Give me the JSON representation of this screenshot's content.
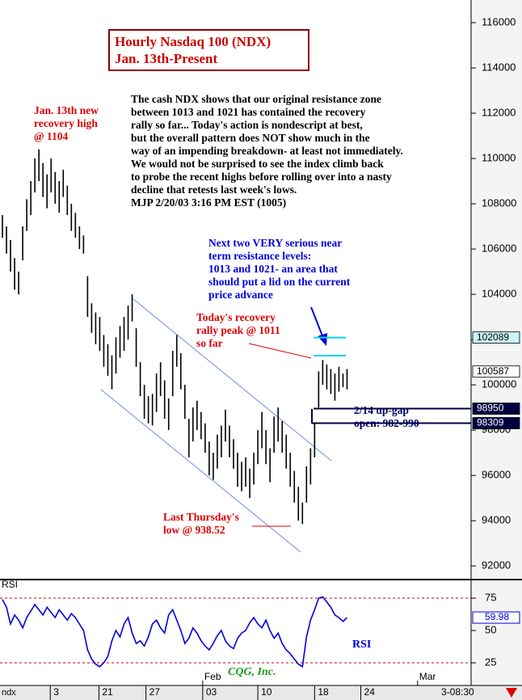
{
  "chart_data": [
    {
      "type": "ohlc",
      "title": "Hourly Nasdaq 100 (NDX)",
      "subtitle": "Jan. 13th-Present",
      "symbol": "ndx",
      "time_label": "3-08:30",
      "watermark": "CQG, Inc.",
      "color": "#000000",
      "high": [
        107500,
        107000,
        106400,
        105600,
        105000,
        107000,
        108200,
        109000,
        110000,
        110400,
        109800,
        109300,
        110000,
        109400,
        109000,
        109500,
        108800,
        108000,
        107600,
        107000,
        106600,
        104800,
        103600,
        103200,
        103000,
        102200,
        101800,
        101300,
        102100,
        102600,
        103000,
        103500,
        104000,
        102500,
        101000,
        100000,
        99500,
        99600,
        100500,
        101000,
        100200,
        99400,
        101500,
        102200,
        101400,
        100000,
        98500,
        99000,
        99300,
        98800,
        98300,
        97500,
        97000,
        97800,
        98200,
        98900,
        98200,
        97600,
        97000,
        96600,
        96800,
        96300,
        97000,
        98000,
        98800,
        98000,
        97200,
        98600,
        99000,
        98400,
        97800,
        97000,
        96200,
        95500,
        94800,
        96400,
        97200,
        98300,
        100600,
        101100,
        100900,
        100700,
        100500,
        100800,
        100500,
        100700
      ],
      "low": [
        106500,
        105800,
        105000,
        104200,
        104000,
        105500,
        106800,
        107500,
        108500,
        109000,
        108300,
        107800,
        108500,
        108000,
        107600,
        108300,
        107500,
        106800,
        106500,
        106000,
        105800,
        103000,
        102300,
        101800,
        101500,
        100800,
        100400,
        99800,
        100500,
        101200,
        101500,
        102000,
        102800,
        100800,
        99500,
        98500,
        98300,
        98200,
        98800,
        99500,
        98500,
        98000,
        99500,
        100800,
        99800,
        98500,
        96800,
        97500,
        98000,
        97600,
        97000,
        96000,
        95800,
        96300,
        96800,
        97500,
        96800,
        96300,
        95500,
        95300,
        95500,
        95000,
        95600,
        96500,
        97200,
        96500,
        95700,
        97000,
        97500,
        97000,
        96300,
        95500,
        94800,
        94000,
        93852,
        94800,
        95600,
        96800,
        99000,
        100000,
        99800,
        99600,
        99300,
        99700,
        99900,
        99800
      ],
      "xlim": [
        -0.6,
        115.6
      ],
      "xticks": [
        {
          "value": 11.8,
          "label": "3"
        },
        {
          "value": 23.8,
          "label": "21"
        },
        {
          "value": 35.4,
          "label": "27"
        },
        {
          "value": 49.4,
          "label": "03"
        },
        {
          "value": 63,
          "label": "10"
        },
        {
          "value": 77,
          "label": "18"
        },
        {
          "value": 88.4,
          "label": "24"
        }
      ],
      "months": [
        {
          "value": 49.4,
          "label": "Feb"
        },
        {
          "value": 102.4,
          "label": "Mar"
        }
      ],
      "ylim": [
        91400,
        117000
      ],
      "yticks": [
        92000,
        94000,
        96000,
        98000,
        100000,
        102000,
        104000,
        106000,
        108000,
        110000,
        112000,
        114000,
        116000
      ],
      "price_markers": [
        {
          "value": 102089,
          "color": "#00d8e0"
        },
        {
          "value": 100587,
          "color": "#000000"
        },
        {
          "value": 98950,
          "color": "#000040"
        },
        {
          "value": 98309,
          "color": "#000040"
        }
      ],
      "annotations": [
        {
          "color": "#dd0000",
          "lines": [
            "Jan. 13th new",
            "recovery high",
            "@ 1104"
          ]
        },
        {
          "color": "#000000",
          "lines": [
            "The cash NDX shows that our original resistance zone",
            "between 1013 and 1021 has contained the recovery",
            "rally so far... Today's action is nondescript at best,",
            "but the overall pattern does NOT show much in the",
            "way of an impending breakdown- at least not immediately.",
            "We would not be surprised to see the index climb back",
            "to probe the recent highs before rolling over into a nasty",
            "decline that retests last week's lows.",
            "MJP 2/20/03  3:16 PM EST  (1005)"
          ]
        },
        {
          "color": "#0000dd",
          "lines": [
            "Next two VERY serious near",
            "term resistance levels:",
            "1013 and 1021- an area that",
            "should put a lid on the current",
            "price advance"
          ]
        },
        {
          "color": "#dd0000",
          "lines": [
            "Today's recovery",
            "rally peak @ 1011",
            "so far"
          ]
        },
        {
          "color": "#000060",
          "lines": [
            "2/14 up-gap",
            "open: 982-990"
          ]
        },
        {
          "color": "#dd0000",
          "lines": [
            "Last Thursday's",
            "low @ 938.52"
          ]
        }
      ]
    },
    {
      "type": "line",
      "name": "RSI",
      "label": "RSI",
      "color": "#0000dd",
      "values": [
        74,
        68,
        55,
        62,
        58,
        52,
        60,
        65,
        70,
        66,
        62,
        68,
        64,
        60,
        66,
        62,
        58,
        63,
        60,
        55,
        50,
        35,
        28,
        24,
        22,
        25,
        30,
        42,
        50,
        45,
        55,
        60,
        48,
        40,
        42,
        38,
        45,
        55,
        58,
        52,
        48,
        62,
        66,
        58,
        50,
        40,
        44,
        52,
        48,
        42,
        38,
        35,
        40,
        46,
        50,
        42,
        38,
        36,
        44,
        48,
        50,
        56,
        60,
        55,
        52,
        58,
        50,
        44,
        48,
        40,
        35,
        32,
        28,
        24,
        22,
        45,
        58,
        66,
        75,
        76,
        72,
        68,
        62,
        60,
        57,
        59.98
      ],
      "ylim": [
        7.5,
        88.75
      ],
      "yticks": [
        25,
        50,
        75
      ],
      "ref_lines": [
        25,
        75
      ],
      "ref_color": "#cc0000"
    }
  ]
}
